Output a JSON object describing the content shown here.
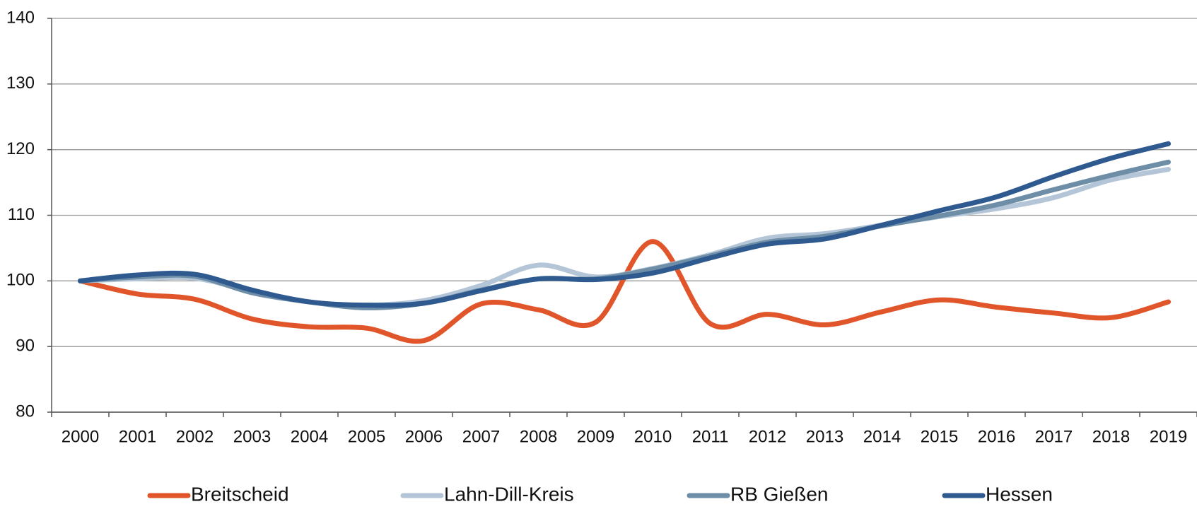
{
  "chart_data": {
    "type": "line",
    "categories": [
      "2000",
      "2001",
      "2002",
      "2003",
      "2004",
      "2005",
      "2006",
      "2007",
      "2008",
      "2009",
      "2010",
      "2011",
      "2012",
      "2013",
      "2014",
      "2015",
      "2016",
      "2017",
      "2018",
      "2019"
    ],
    "series": [
      {
        "name": "Breitscheid",
        "color": "#e0562a",
        "values": [
          100,
          98,
          97.2,
          94.2,
          93,
          92.8,
          90.9,
          96.5,
          95.6,
          93.7,
          106,
          93.5,
          94.9,
          93.3,
          95.3,
          97.1,
          96,
          95.1,
          94.4,
          96.8
        ]
      },
      {
        "name": "Lahn-Dill-Kreis",
        "color": "#b3c5d6",
        "values": [
          100,
          100.3,
          100.4,
          98.4,
          96.8,
          96.3,
          97,
          99.3,
          102.4,
          100.6,
          101.9,
          104,
          106.5,
          107.2,
          108.5,
          109.8,
          111,
          112.7,
          115.4,
          117
        ]
      },
      {
        "name": "RB Gießen",
        "color": "#6e8ea8",
        "values": [
          100,
          100.6,
          100.7,
          98.2,
          96.8,
          95.9,
          96.6,
          98.6,
          100.3,
          100.3,
          101.8,
          103.8,
          105.9,
          106.8,
          108.4,
          109.9,
          111.6,
          113.9,
          116.1,
          118.1
        ]
      },
      {
        "name": "Hessen",
        "color": "#2f5a8f",
        "values": [
          100,
          100.9,
          101,
          98.6,
          96.8,
          96.3,
          96.6,
          98.5,
          100.3,
          100.2,
          101.2,
          103.5,
          105.6,
          106.4,
          108.5,
          110.7,
          112.8,
          115.9,
          118.7,
          120.9
        ]
      }
    ],
    "ylim": [
      80,
      140
    ],
    "yticks": [
      80,
      90,
      100,
      110,
      120,
      130,
      140
    ],
    "grid": true,
    "legend": "bottom"
  }
}
